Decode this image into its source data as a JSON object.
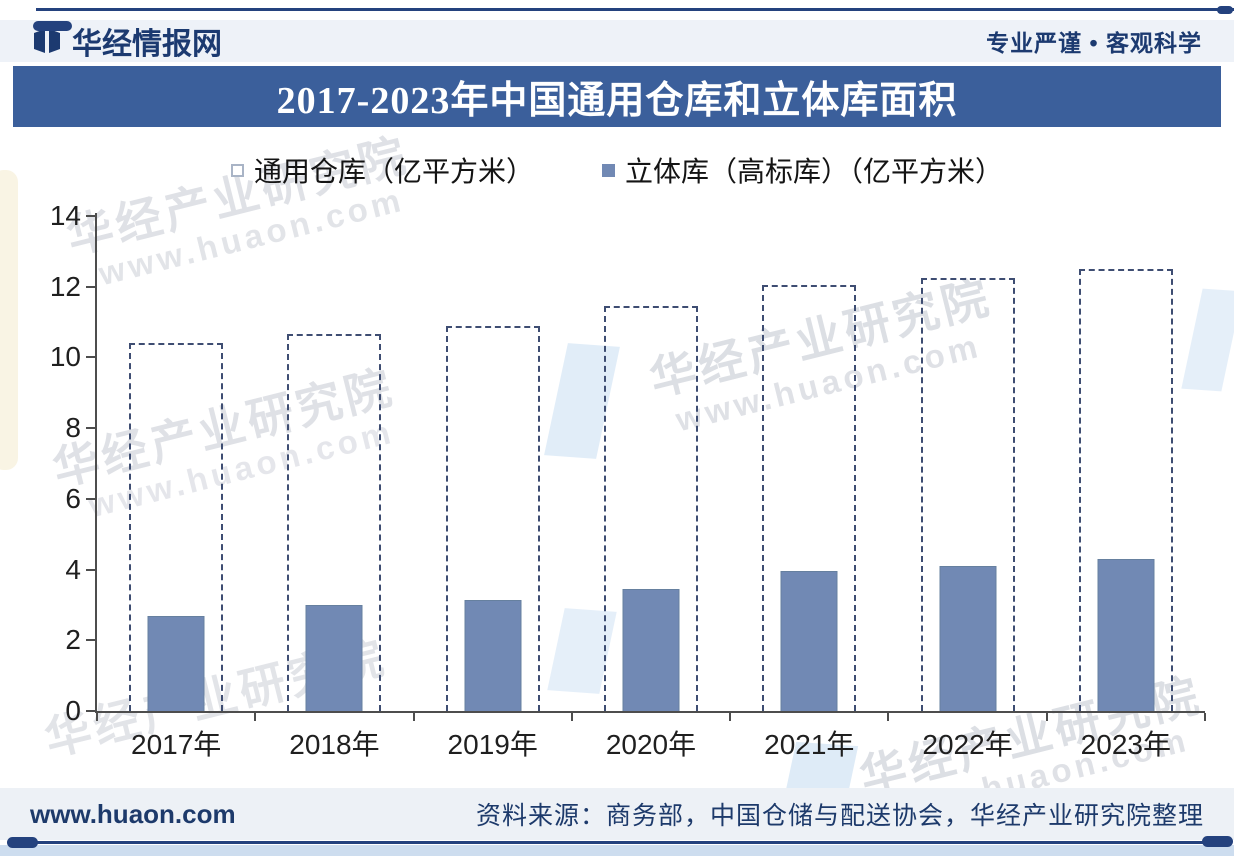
{
  "header": {
    "brand": "华经情报网",
    "slogan": "专业严谨 • 客观科学"
  },
  "title": "2017-2023年中国通用仓库和立体库面积",
  "legend": [
    {
      "label": "通用仓库（亿平方米）",
      "marker": "open-square"
    },
    {
      "label": "立体库（高标库）（亿平方米）",
      "marker": "solid-square"
    }
  ],
  "chart_data": {
    "type": "bar",
    "title": "2017-2023年中国通用仓库和立体库面积",
    "categories": [
      "2017年",
      "2018年",
      "2019年",
      "2020年",
      "2021年",
      "2022年",
      "2023年"
    ],
    "series": [
      {
        "name": "通用仓库（亿平方米）",
        "style": "dashed-outline",
        "values": [
          10.4,
          10.65,
          10.9,
          11.45,
          12.05,
          12.25,
          12.5
        ]
      },
      {
        "name": "立体库（高标库）（亿平方米）",
        "style": "solid",
        "values": [
          2.7,
          3.0,
          3.15,
          3.45,
          3.95,
          4.1,
          4.3
        ]
      }
    ],
    "xlabel": "",
    "ylabel": "",
    "ylim": [
      0,
      14
    ],
    "yticks": [
      0,
      2,
      4,
      6,
      8,
      10,
      12,
      14
    ],
    "grid": false,
    "legend_position": "top"
  },
  "footer": {
    "website": "www.huaon.com",
    "source": "资料来源：商务部，中国仓储与配送协会，华经产业研究院整理"
  },
  "watermark": {
    "org": "华经产业研究院",
    "url": "www.huaon.com"
  },
  "icons": {
    "logo": "open-book-icon",
    "slogan_bullet": "•"
  },
  "colors": {
    "navy": "#1c3a70",
    "title_bar_bg": "#3b5f9b",
    "solid_bar": "#7189b4",
    "dashed_outline": "#3e4d72",
    "axis": "#4d4d4d",
    "band_bg": "#eef2f8",
    "bottom_strip": "#cdddef"
  }
}
